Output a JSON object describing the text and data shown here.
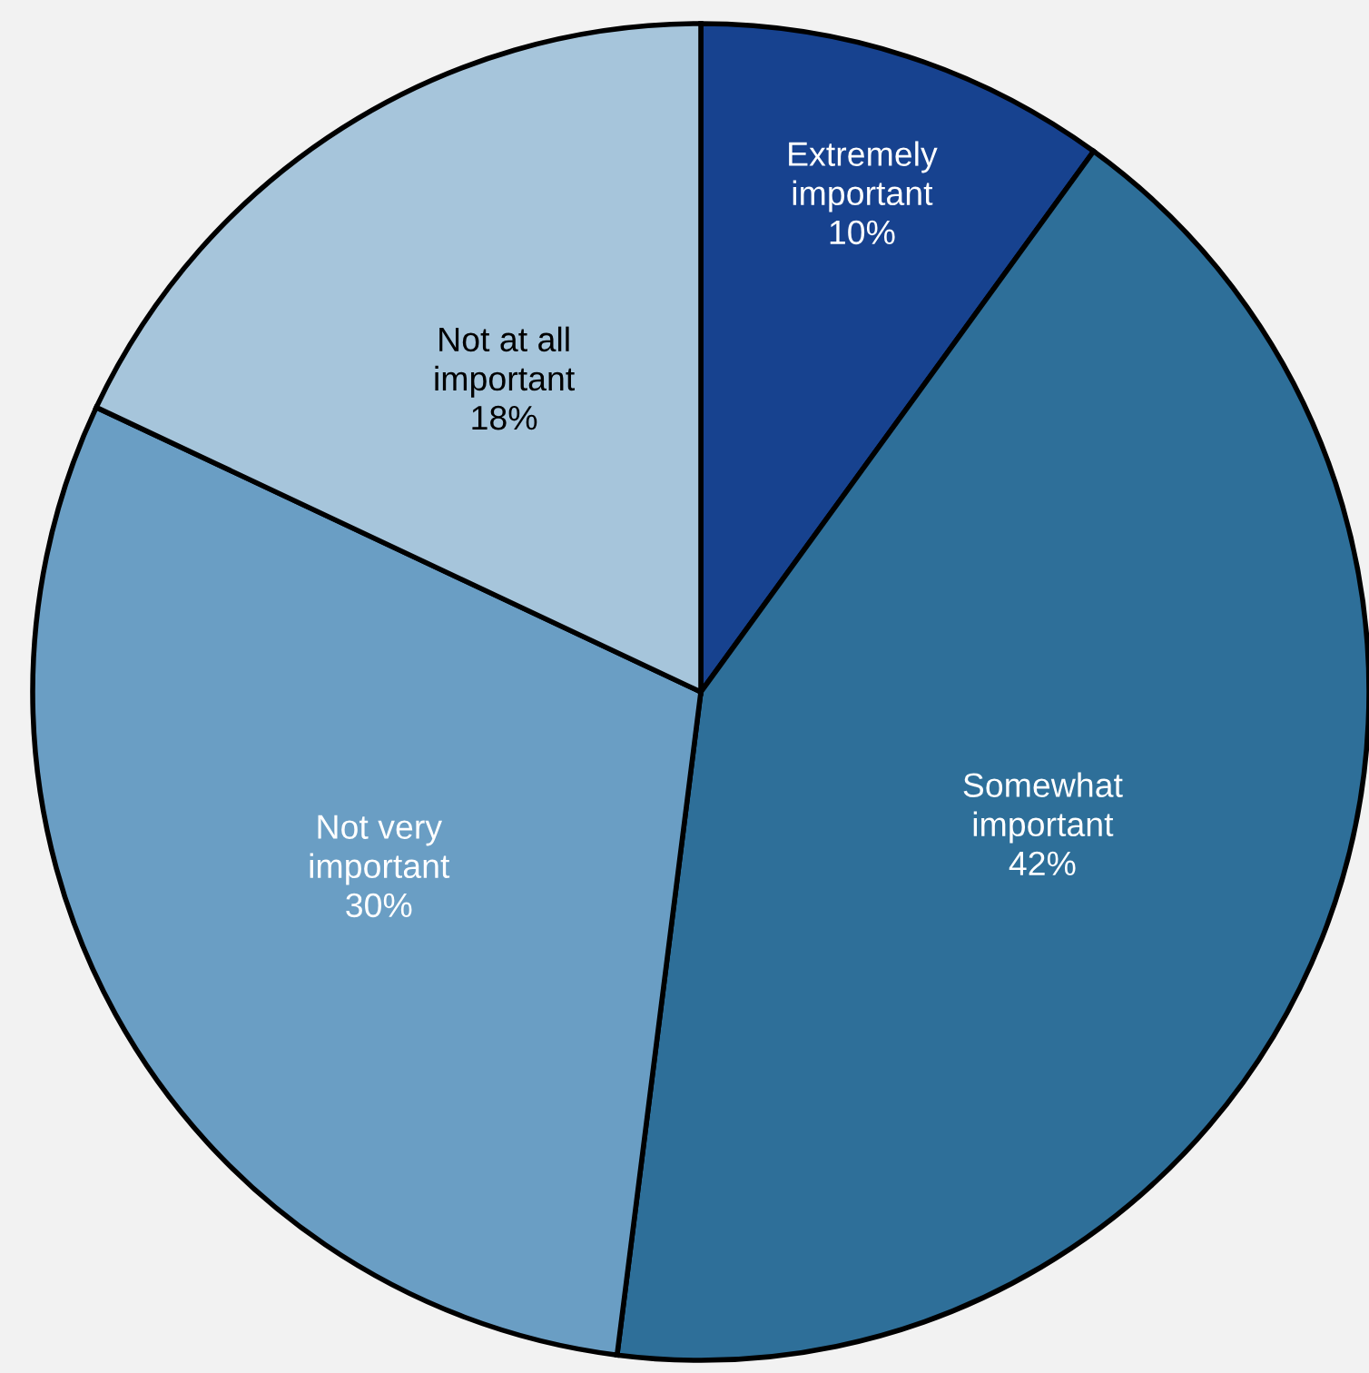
{
  "chart_data": {
    "type": "pie",
    "categories": [
      "Extremely important",
      "Somewhat important",
      "Not very important",
      "Not at all important"
    ],
    "values": [
      10,
      42,
      30,
      18
    ],
    "colors": [
      "#17428f",
      "#2e6f99",
      "#6a9ec4",
      "#a6c5db"
    ],
    "value_labels": [
      "10%",
      "42%",
      "30%",
      "18%"
    ]
  }
}
